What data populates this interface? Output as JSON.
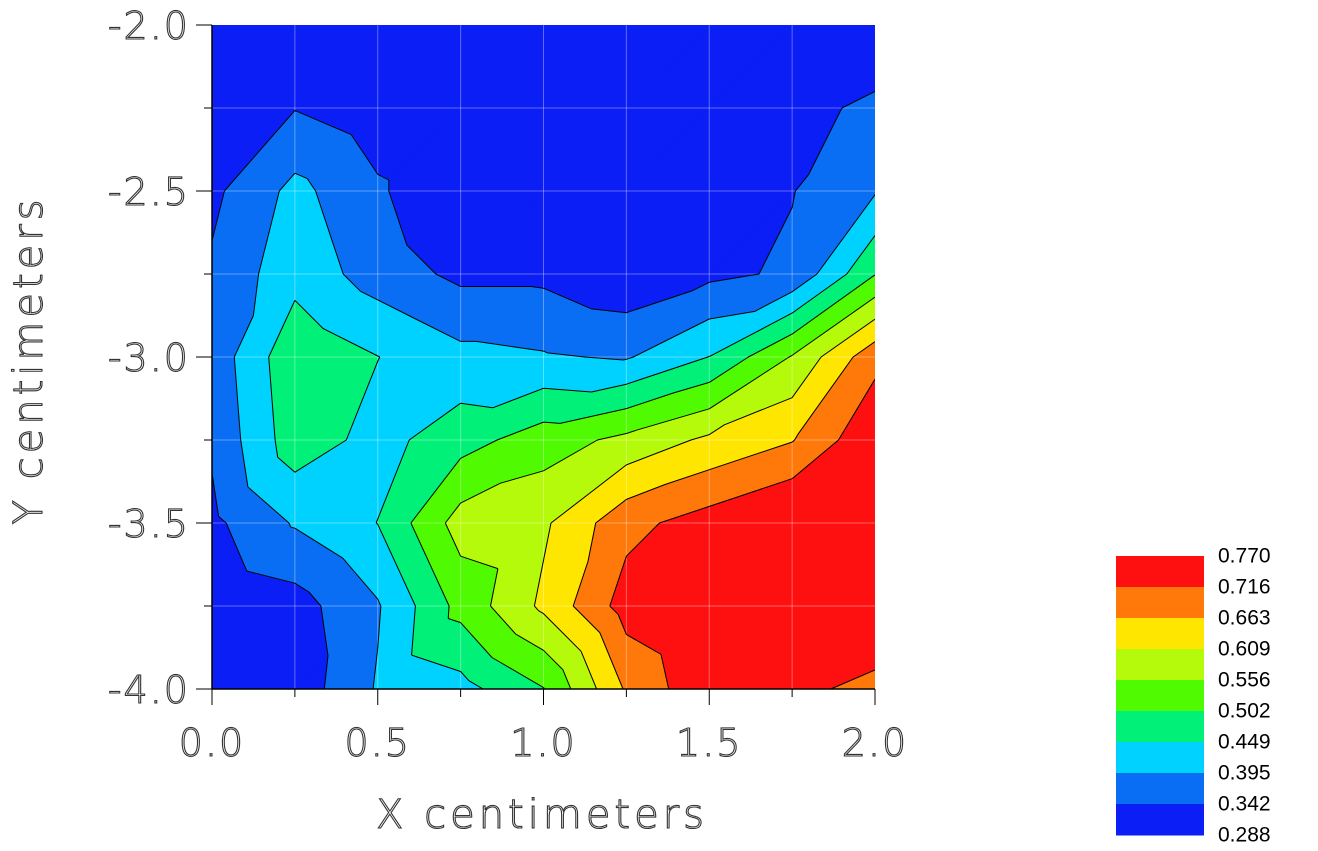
{
  "chart_data": {
    "type": "contour",
    "title": "",
    "xlabel": "X centimeters",
    "ylabel": "Y centimeters",
    "xlim": [
      0.0,
      2.0
    ],
    "ylim": [
      -4.0,
      -2.0
    ],
    "x_ticks": [
      "0.0",
      "0.5",
      "1.0",
      "1.5",
      "2.0"
    ],
    "y_ticks": [
      "-2.0",
      "-2.5",
      "-3.0",
      "-3.5",
      "-4.0"
    ],
    "grid": true,
    "legend_position": "bottom-right",
    "levels": [
      0.288,
      0.342,
      0.395,
      0.449,
      0.502,
      0.556,
      0.609,
      0.663,
      0.716,
      0.77
    ],
    "level_labels": [
      "0.770",
      "0.716",
      "0.663",
      "0.609",
      "0.556",
      "0.502",
      "0.449",
      "0.395",
      "0.342",
      "0.288"
    ],
    "band_colors": [
      "#0a1ef5",
      "#0a6ef5",
      "#00d2ff",
      "#00f078",
      "#50fa00",
      "#b4fa0a",
      "#ffe600",
      "#ff780a",
      "#ff1010"
    ],
    "grid_x": [
      0.0,
      0.25,
      0.5,
      0.75,
      1.0,
      1.25,
      1.5,
      1.75,
      2.0
    ],
    "grid_y": [
      -4.0,
      -3.75,
      -3.5,
      -3.25,
      -3.0,
      -2.75,
      -2.5,
      -2.25,
      -2.0
    ],
    "z": [
      [
        0.29,
        0.31,
        0.4,
        0.43,
        0.5,
        0.67,
        0.76,
        0.73,
        0.7
      ],
      [
        0.3,
        0.32,
        0.39,
        0.52,
        0.62,
        0.74,
        0.78,
        0.78,
        0.77
      ],
      [
        0.33,
        0.4,
        0.45,
        0.58,
        0.6,
        0.7,
        0.74,
        0.78,
        0.78
      ],
      [
        0.35,
        0.48,
        0.43,
        0.48,
        0.53,
        0.57,
        0.62,
        0.66,
        0.76
      ],
      [
        0.36,
        0.49,
        0.45,
        0.41,
        0.4,
        0.39,
        0.45,
        0.56,
        0.7
      ],
      [
        0.35,
        0.43,
        0.37,
        0.33,
        0.33,
        0.3,
        0.33,
        0.35,
        0.5
      ],
      [
        0.33,
        0.41,
        0.35,
        0.29,
        0.3,
        0.29,
        0.34,
        0.34,
        0.39
      ],
      [
        0.32,
        0.34,
        0.31,
        0.29,
        0.29,
        0.29,
        0.29,
        0.33,
        0.35
      ],
      [
        0.29,
        0.31,
        0.3,
        0.29,
        0.29,
        0.29,
        0.31,
        0.29,
        0.31
      ]
    ]
  }
}
